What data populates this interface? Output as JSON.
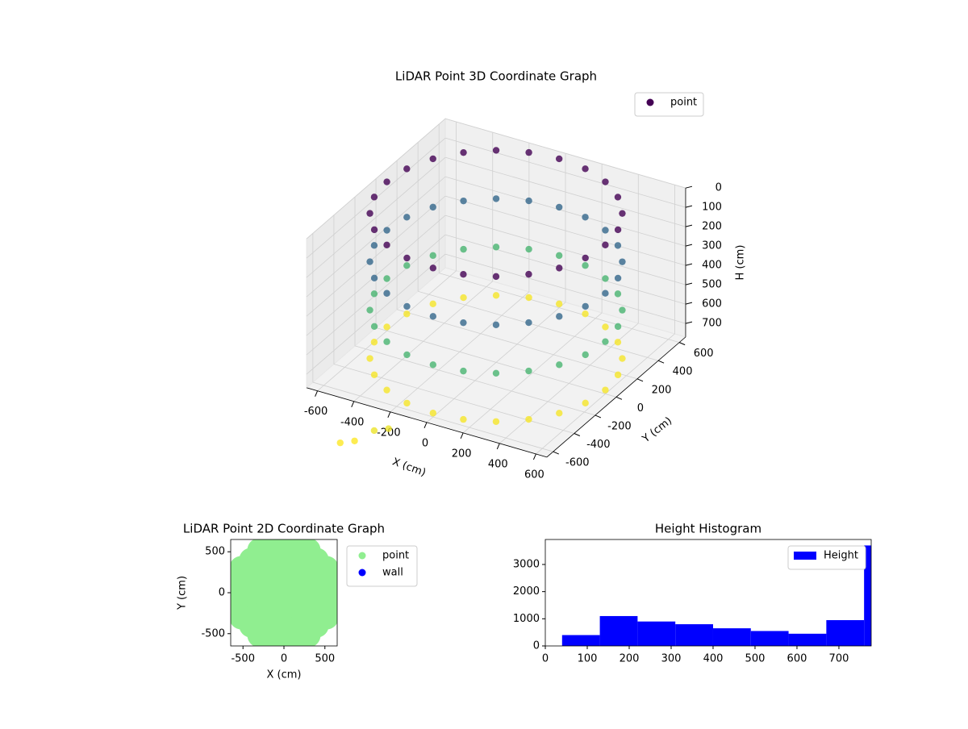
{
  "chart_data": [
    {
      "type": "scatter3d",
      "title": "LiDAR Point 3D Coordinate Graph",
      "xlabel": "X (cm)",
      "ylabel": "Y (cm)",
      "zlabel": "H (cm)",
      "xlim": [
        -660,
        660
      ],
      "ylim": [
        -660,
        660
      ],
      "zlim": [
        0,
        770
      ],
      "z_inverted": true,
      "xticks": [
        -600,
        -400,
        -200,
        0,
        200,
        400,
        600
      ],
      "yticks": [
        -600,
        -400,
        -200,
        0,
        200,
        400,
        600
      ],
      "zticks": [
        0,
        100,
        200,
        300,
        400,
        500,
        600,
        700
      ],
      "grid": true,
      "legend": "upper right",
      "series": [
        {
          "name": "point",
          "colormap": "viridis",
          "x": [
            600,
            580,
            520,
            424,
            300,
            155,
            0,
            -155,
            -300,
            -424,
            -520,
            -580,
            -600,
            -580,
            -520,
            -424,
            -300,
            -155,
            0,
            155,
            300,
            424,
            520,
            580,
            600,
            580,
            520,
            424,
            300,
            155,
            0,
            -155,
            -300,
            -424,
            -520,
            -580,
            -600,
            -580,
            -520,
            -424,
            -300,
            -155,
            0,
            155,
            300,
            424,
            520,
            580,
            600,
            580,
            520,
            424,
            300,
            155,
            0,
            -155,
            -300,
            -424,
            -520,
            -580,
            -600,
            -580,
            -520,
            -424,
            -300,
            -155,
            0,
            155,
            300,
            424,
            520,
            580,
            600,
            580,
            520,
            424,
            300,
            155,
            0,
            -155,
            -300,
            -424,
            -520,
            -580,
            -600,
            -580,
            -520,
            -424,
            -300,
            -155,
            0,
            155,
            300,
            424,
            520,
            580,
            -250,
            -200,
            -150,
            -100
          ],
          "y": [
            0,
            155,
            300,
            424,
            520,
            580,
            600,
            580,
            520,
            424,
            300,
            155,
            0,
            -155,
            -300,
            -424,
            -520,
            -580,
            -600,
            -580,
            -520,
            -424,
            -300,
            -155,
            0,
            155,
            300,
            424,
            520,
            580,
            600,
            580,
            520,
            424,
            300,
            155,
            0,
            -155,
            -300,
            -424,
            -520,
            -580,
            -600,
            -580,
            -520,
            -424,
            -300,
            -155,
            0,
            155,
            300,
            424,
            520,
            580,
            600,
            580,
            520,
            424,
            300,
            155,
            0,
            -155,
            -300,
            -424,
            -520,
            -580,
            -600,
            -580,
            -520,
            -424,
            -300,
            -155,
            0,
            155,
            300,
            424,
            520,
            580,
            600,
            580,
            520,
            424,
            300,
            155,
            0,
            -155,
            -300,
            -424,
            -520,
            -580,
            -600,
            -580,
            -520,
            -424,
            -300,
            -155,
            -1050,
            -1000,
            -900,
            -850
          ],
          "z": [
            0,
            0,
            0,
            0,
            0,
            0,
            0,
            0,
            0,
            0,
            0,
            0,
            0,
            0,
            0,
            0,
            0,
            0,
            0,
            0,
            0,
            0,
            0,
            0,
            250,
            250,
            250,
            250,
            250,
            250,
            250,
            250,
            250,
            250,
            250,
            250,
            250,
            250,
            250,
            250,
            250,
            250,
            250,
            250,
            250,
            250,
            250,
            250,
            500,
            500,
            500,
            500,
            500,
            500,
            500,
            500,
            500,
            500,
            500,
            500,
            500,
            500,
            500,
            500,
            500,
            500,
            500,
            500,
            500,
            500,
            500,
            500,
            750,
            750,
            750,
            750,
            750,
            750,
            750,
            750,
            750,
            750,
            750,
            750,
            750,
            750,
            750,
            750,
            750,
            750,
            750,
            750,
            750,
            750,
            750,
            750,
            760,
            760,
            740,
            740
          ]
        }
      ]
    },
    {
      "type": "scatter",
      "title": "LiDAR Point 2D Coordinate Graph",
      "xlabel": "X (cm)",
      "ylabel": "Y (cm)",
      "xlim": [
        -650,
        650
      ],
      "ylim": [
        -650,
        650
      ],
      "xticks": [
        -500,
        0,
        500
      ],
      "yticks": [
        -500,
        0,
        500
      ],
      "legend": "outside upper right",
      "series": [
        {
          "name": "point",
          "color": "#90ee90",
          "x": [
            -600,
            -400,
            -400,
            -400,
            -400,
            -400,
            -200,
            -200,
            -200,
            -200,
            -200,
            0,
            0,
            0,
            0,
            0,
            0,
            0,
            200,
            200,
            200,
            200,
            200,
            400,
            400,
            400,
            400,
            400,
            600,
            520,
            300,
            -300,
            -520,
            -520,
            -300,
            300,
            520,
            600,
            600,
            -600,
            -600,
            200,
            -200,
            200,
            -200
          ],
          "y": [
            0,
            -400,
            -200,
            0,
            200,
            400,
            -400,
            -200,
            0,
            200,
            400,
            -600,
            -400,
            -200,
            0,
            200,
            400,
            600,
            -400,
            -200,
            0,
            200,
            400,
            -400,
            -200,
            0,
            200,
            400,
            0,
            300,
            520,
            520,
            300,
            -300,
            -520,
            -520,
            -300,
            200,
            -200,
            200,
            -200,
            600,
            600,
            -600,
            -600
          ]
        },
        {
          "name": "wall",
          "color": "#0000ff",
          "x": [],
          "y": []
        }
      ]
    },
    {
      "type": "histogram",
      "title": "Height Histogram",
      "xlim": [
        0,
        777
      ],
      "ylim": [
        0,
        3920
      ],
      "xticks": [
        0,
        100,
        200,
        300,
        400,
        500,
        600,
        700
      ],
      "yticks": [
        0,
        1000,
        2000,
        3000
      ],
      "legend": "upper right",
      "series": [
        {
          "name": "Height",
          "color": "#0000ff",
          "bins": [
            40,
            130,
            220,
            310,
            400,
            490,
            580,
            670,
            760,
            777
          ],
          "counts": [
            400,
            1100,
            900,
            800,
            650,
            550,
            450,
            950,
            3700
          ]
        }
      ]
    }
  ]
}
